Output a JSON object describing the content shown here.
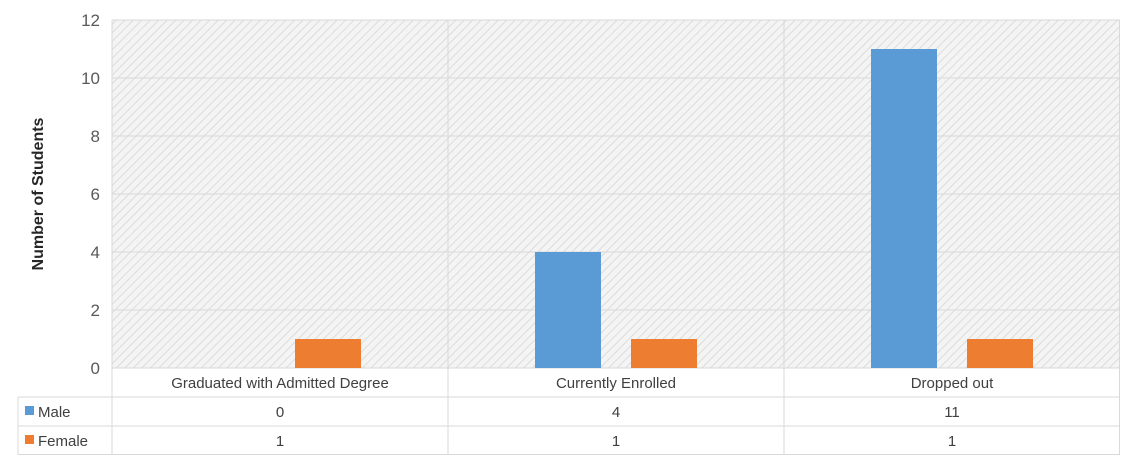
{
  "chart_data": {
    "type": "bar",
    "categories": [
      "Graduated with Admitted Degree",
      "Currently Enrolled",
      "Dropped out"
    ],
    "series": [
      {
        "name": "Male",
        "values": [
          0,
          4,
          11
        ],
        "color": "#5B9BD5"
      },
      {
        "name": "Female",
        "values": [
          1,
          1,
          1
        ],
        "color": "#ED7D31"
      }
    ],
    "ylabel": "Number of Students",
    "ylim": [
      0,
      12
    ],
    "yticks": [
      "0",
      "2",
      "4",
      "6",
      "8",
      "10",
      "12"
    ],
    "grid": true,
    "legend": "data-table",
    "table": {
      "rows": [
        {
          "label": "Male",
          "cells": [
            "0",
            "4",
            "11"
          ]
        },
        {
          "label": "Female",
          "cells": [
            "1",
            "1",
            "1"
          ]
        }
      ]
    }
  }
}
